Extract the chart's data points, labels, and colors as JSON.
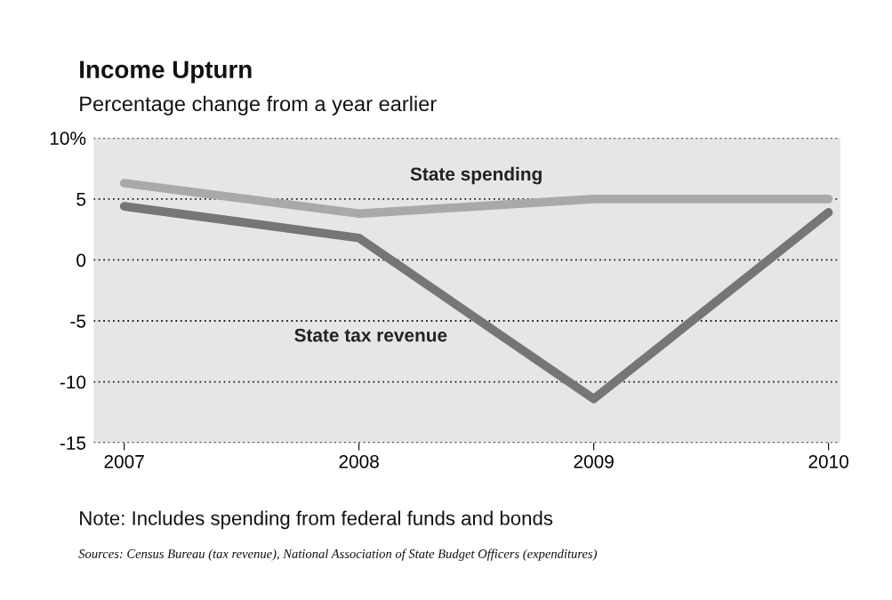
{
  "chart_data": {
    "type": "line",
    "title": "Income Upturn",
    "subtitle": "Percentage change from a year earlier",
    "x": [
      2007,
      2008,
      2009,
      2010
    ],
    "series": [
      {
        "name": "State spending",
        "color": "#a9a9a9",
        "values": [
          6.3,
          3.8,
          5.0,
          5.0
        ]
      },
      {
        "name": "State tax revenue",
        "color": "#767676",
        "values": [
          4.4,
          1.8,
          -11.4,
          3.9
        ]
      }
    ],
    "xlim": [
      2006.87,
      2010.05
    ],
    "xticks": [
      2007,
      2008,
      2009,
      2010
    ],
    "ylim": [
      -15,
      10
    ],
    "yticks": [
      {
        "value": 10,
        "label": "10%"
      },
      5,
      0,
      -5,
      -10,
      -15
    ],
    "grid": "y",
    "legend": false,
    "marker": "none",
    "line_style": "solid",
    "annotations": [
      "Note: Includes spending from federal funds and bonds",
      "Sources: Census Bureau (tax revenue), National Association of State Budget Officers (expenditures)"
    ]
  }
}
